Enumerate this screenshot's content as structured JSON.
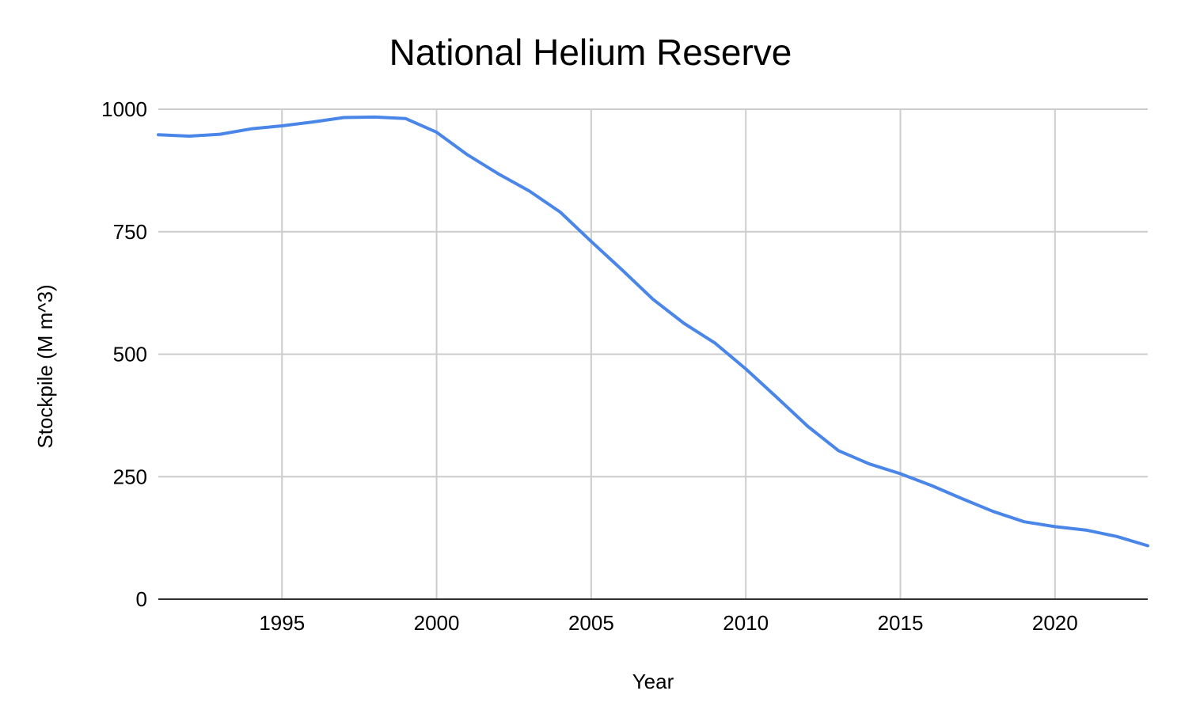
{
  "chart_data": {
    "type": "line",
    "title": "National Helium Reserve",
    "xlabel": "Year",
    "ylabel": "Stockpile (M m^3)",
    "xlim": [
      1991,
      2023
    ],
    "ylim": [
      0,
      1000
    ],
    "x_ticks": [
      1995,
      2000,
      2005,
      2010,
      2015,
      2020
    ],
    "y_ticks": [
      0,
      250,
      500,
      750,
      1000
    ],
    "grid": true,
    "legend": "none",
    "colors": {
      "series": "#4a86e8",
      "grid": "#cccccc",
      "baseline": "#333333"
    },
    "x": [
      1991,
      1992,
      1993,
      1994,
      1995,
      1996,
      1997,
      1998,
      1999,
      2000,
      2001,
      2002,
      2003,
      2004,
      2005,
      2006,
      2007,
      2008,
      2009,
      2010,
      2011,
      2012,
      2013,
      2014,
      2015,
      2016,
      2017,
      2018,
      2019,
      2020,
      2021,
      2022,
      2023
    ],
    "series": [
      {
        "values": [
          948,
          945,
          949,
          960,
          966,
          974,
          983,
          984,
          981,
          953,
          907,
          868,
          833,
          790,
          730,
          672,
          612,
          563,
          523,
          470,
          412,
          353,
          303,
          276,
          256,
          232,
          205,
          179,
          158,
          148,
          141,
          128,
          109
        ]
      }
    ]
  }
}
